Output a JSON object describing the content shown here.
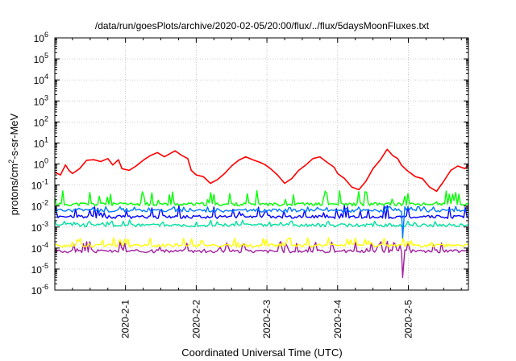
{
  "chart_data": {
    "type": "line",
    "title": "/data/run/goesPlots/archive/2020-02-05/20:00/flux/../flux/5daysMoonFluxes.txt",
    "xlabel": "Coordinated Universal Time (UTC)",
    "ylabel": "protons/cm²-s-sr-MeV",
    "ylabel_parts": {
      "pre": "protons/cm",
      "sup": "2",
      "post": "-s-sr-MeV"
    },
    "yscale": "log",
    "ylim_exp": [
      -6,
      6
    ],
    "y_tick_exponents": [
      -6,
      -5,
      -4,
      -3,
      -2,
      -1,
      0,
      1,
      2,
      3,
      4,
      5,
      6
    ],
    "y_tick_base": "10",
    "xlim_days": [
      0.0,
      5.85
    ],
    "x_ticks": [
      {
        "label": "2020-2-1",
        "day": 1
      },
      {
        "label": "2020-2-2",
        "day": 2
      },
      {
        "label": "2020-2-3",
        "day": 3
      },
      {
        "label": "2020-2-4",
        "day": 4
      },
      {
        "label": "2020-2-5",
        "day": 5
      }
    ],
    "grid": true,
    "series": [
      {
        "color": "#ff0000",
        "values": [
          [
            0.0,
            0.4
          ],
          [
            0.08,
            0.3
          ],
          [
            0.15,
            0.9
          ],
          [
            0.2,
            0.5
          ],
          [
            0.25,
            0.35
          ],
          [
            0.35,
            0.6
          ],
          [
            0.45,
            1.5
          ],
          [
            0.55,
            1.6
          ],
          [
            0.65,
            1.3
          ],
          [
            0.75,
            1.8
          ],
          [
            0.82,
            0.9
          ],
          [
            0.9,
            1.6
          ],
          [
            0.95,
            0.6
          ],
          [
            1.05,
            0.5
          ],
          [
            1.15,
            0.8
          ],
          [
            1.25,
            1.5
          ],
          [
            1.35,
            2.5
          ],
          [
            1.45,
            3.5
          ],
          [
            1.55,
            2.2
          ],
          [
            1.7,
            4.2
          ],
          [
            1.8,
            2.5
          ],
          [
            1.88,
            1.8
          ],
          [
            1.93,
            0.5
          ],
          [
            2.0,
            0.3
          ],
          [
            2.1,
            0.25
          ],
          [
            2.2,
            0.12
          ],
          [
            2.3,
            0.18
          ],
          [
            2.4,
            0.35
          ],
          [
            2.5,
            0.8
          ],
          [
            2.6,
            1.5
          ],
          [
            2.7,
            2.2
          ],
          [
            2.8,
            1.6
          ],
          [
            2.9,
            1.2
          ],
          [
            2.98,
            0.9
          ],
          [
            3.05,
            0.6
          ],
          [
            3.15,
            0.3
          ],
          [
            3.25,
            0.12
          ],
          [
            3.35,
            0.2
          ],
          [
            3.45,
            0.5
          ],
          [
            3.55,
            0.9
          ],
          [
            3.65,
            1.8
          ],
          [
            3.75,
            2.2
          ],
          [
            3.85,
            1.2
          ],
          [
            3.95,
            0.7
          ],
          [
            4.0,
            0.35
          ],
          [
            4.1,
            0.2
          ],
          [
            4.2,
            0.08
          ],
          [
            4.3,
            0.06
          ],
          [
            4.4,
            0.15
          ],
          [
            4.5,
            0.6
          ],
          [
            4.6,
            1.5
          ],
          [
            4.7,
            5.0
          ],
          [
            4.78,
            2.5
          ],
          [
            4.85,
            1.8
          ],
          [
            4.9,
            0.9
          ],
          [
            4.98,
            0.5
          ],
          [
            5.1,
            0.25
          ],
          [
            5.2,
            0.2
          ],
          [
            5.3,
            0.08
          ],
          [
            5.4,
            0.05
          ],
          [
            5.5,
            0.15
          ],
          [
            5.6,
            0.5
          ],
          [
            5.7,
            0.8
          ],
          [
            5.8,
            0.6
          ],
          [
            5.85,
            0.9
          ]
        ]
      },
      {
        "color": "#00ff00",
        "noisy": true,
        "base": 0.012,
        "amp": 4.5,
        "seed": 11
      },
      {
        "color": "#00e0a0",
        "noisy": true,
        "base": 0.0012,
        "amp": 1.8,
        "seed": 23
      },
      {
        "color": "#0078ff",
        "noisy": true,
        "base": 0.006,
        "amp": 1.6,
        "seed": 31
      },
      {
        "color": "#0000ff",
        "noisy": true,
        "base": 0.003,
        "amp": 3.5,
        "seed": 47
      },
      {
        "color": "#ffff00",
        "noisy": true,
        "base": 0.00013,
        "amp": 2.5,
        "seed": 53
      },
      {
        "color": "#a020a0",
        "noisy": true,
        "base": 7e-05,
        "amp": 3.0,
        "seed": 67
      }
    ],
    "dropout": {
      "day": 4.92,
      "values": [
        4e-06,
        0.0003
      ]
    }
  }
}
